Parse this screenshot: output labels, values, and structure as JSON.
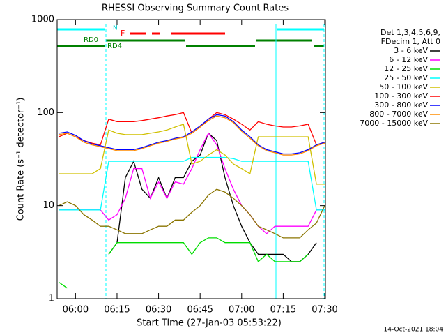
{
  "chart_data": {
    "type": "line",
    "title": "RHESSI Observing Summary Count Rates",
    "xlabel": "Start Time (27-Jan-03 05:53:22)",
    "ylabel": "Count Rate (s⁻¹ detector⁻¹)",
    "log_y": true,
    "ylim": [
      1,
      1000
    ],
    "yticks": [
      1,
      10,
      100,
      1000
    ],
    "xlim": [
      "05:53:22",
      "07:30:15"
    ],
    "xticks": [
      "06:00",
      "06:15",
      "06:30",
      "06:45",
      "07:00",
      "07:15",
      "07:30"
    ],
    "legend_title": [
      "Det 1,3,4,5,6,9,",
      "FDecim 1, Att 0"
    ],
    "legend_position": "right",
    "annotations": [
      "N",
      "F",
      "RD0",
      "RD4"
    ],
    "timestamp": "14-Oct-2021 18:04",
    "x": [
      "05:54",
      "05:57",
      "06:00",
      "06:03",
      "06:06",
      "06:09",
      "06:12",
      "06:15",
      "06:18",
      "06:21",
      "06:24",
      "06:27",
      "06:30",
      "06:33",
      "06:36",
      "06:39",
      "06:42",
      "06:45",
      "06:48",
      "06:51",
      "06:54",
      "06:57",
      "07:00",
      "07:03",
      "07:06",
      "07:09",
      "07:12",
      "07:15",
      "07:18",
      "07:21",
      "07:24",
      "07:27",
      "07:30"
    ],
    "series": [
      {
        "name": "3 - 6 keV",
        "color": "#000000",
        "values": [
          null,
          null,
          null,
          null,
          null,
          null,
          3,
          4,
          20,
          30,
          15,
          12,
          20,
          12,
          20,
          20,
          30,
          35,
          60,
          50,
          20,
          10,
          6,
          4,
          3,
          3,
          3,
          3,
          2.5,
          2.5,
          3,
          4,
          null
        ]
      },
      {
        "name": "6 - 12 keV",
        "color": "#ff00ff",
        "values": [
          9,
          9,
          9,
          9,
          9,
          9,
          7,
          8,
          12,
          25,
          25,
          12,
          18,
          12,
          18,
          17,
          25,
          40,
          60,
          45,
          25,
          15,
          10,
          8,
          6,
          5,
          6,
          6,
          6,
          6,
          6,
          9,
          9
        ]
      },
      {
        "name": "12 - 25 keV",
        "color": "#00dd00",
        "values": [
          1.5,
          1.3,
          null,
          null,
          null,
          null,
          3,
          4,
          4,
          4,
          4,
          4,
          4,
          4,
          4,
          4,
          3,
          4,
          4.5,
          4.5,
          4,
          4,
          4,
          4,
          2.5,
          3,
          2.5,
          2.5,
          2.5,
          2.5,
          3,
          null,
          null
        ]
      },
      {
        "name": "25 - 50 keV",
        "color": "#00ffff",
        "values": [
          9,
          9,
          9,
          9,
          9,
          9,
          30,
          30,
          30,
          30,
          30,
          30,
          30,
          30,
          30,
          30,
          33,
          33,
          33,
          33,
          33,
          32,
          30,
          30,
          30,
          30,
          30,
          30,
          30,
          30,
          30,
          9,
          9
        ]
      },
      {
        "name": "50 - 100 keV",
        "color": "#d0c000",
        "values": [
          22,
          22,
          22,
          22,
          22,
          25,
          65,
          60,
          58,
          58,
          58,
          60,
          62,
          65,
          70,
          75,
          28,
          30,
          35,
          40,
          35,
          28,
          25,
          22,
          55,
          55,
          55,
          55,
          55,
          55,
          55,
          17,
          17
        ]
      },
      {
        "name": "100 - 300 keV",
        "color": "#ff0000",
        "values": [
          55,
          60,
          55,
          50,
          47,
          45,
          85,
          80,
          80,
          80,
          82,
          85,
          88,
          92,
          95,
          100,
          60,
          70,
          85,
          100,
          95,
          85,
          75,
          65,
          80,
          75,
          72,
          70,
          70,
          72,
          75,
          45,
          48
        ]
      },
      {
        "name": "300 - 800 keV",
        "color": "#0000ff",
        "values": [
          60,
          62,
          57,
          50,
          46,
          44,
          42,
          40,
          40,
          40,
          42,
          45,
          48,
          50,
          53,
          55,
          62,
          72,
          85,
          95,
          92,
          80,
          65,
          55,
          45,
          40,
          38,
          36,
          36,
          37,
          40,
          45,
          48
        ]
      },
      {
        "name": "800 - 7000 keV",
        "color": "#ff8c00",
        "values": [
          58,
          60,
          55,
          48,
          45,
          43,
          41,
          39,
          39,
          39,
          41,
          44,
          47,
          49,
          52,
          54,
          60,
          70,
          82,
          92,
          88,
          78,
          63,
          53,
          44,
          39,
          37,
          35,
          35,
          36,
          39,
          44,
          47
        ]
      },
      {
        "name": "7000 - 15000 keV",
        "color": "#8b7500",
        "values": [
          10,
          11,
          10,
          8,
          7,
          6,
          6,
          5.5,
          5,
          5,
          5,
          5.5,
          6,
          6,
          7,
          7,
          8.5,
          10,
          13,
          15,
          14,
          12,
          10,
          8,
          6,
          5.5,
          5,
          4.5,
          4.5,
          4.5,
          5.5,
          6.5,
          10
        ]
      }
    ]
  }
}
